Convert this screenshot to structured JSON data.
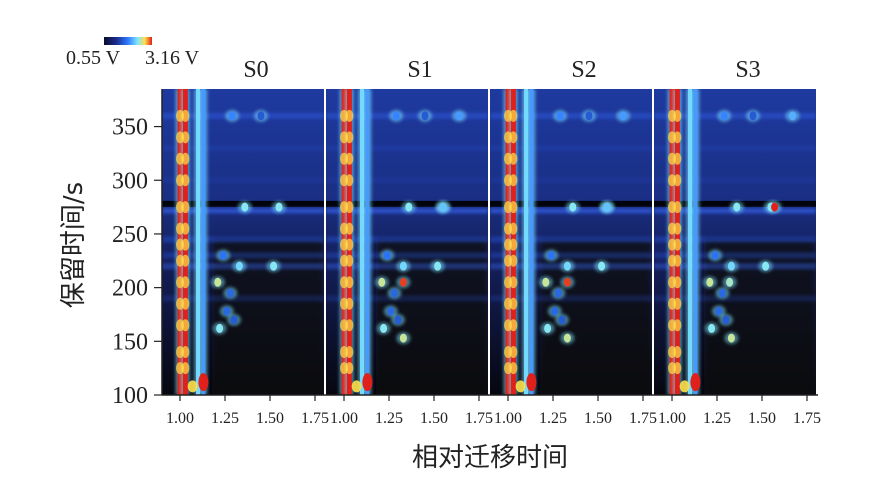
{
  "chart_data": {
    "type": "heatmap",
    "panels": [
      "S0",
      "S1",
      "S2",
      "S3"
    ],
    "xlabel": "相对迁移时间",
    "ylabel": "保留时间/s",
    "x_ticks": [
      "1.00",
      "1.25",
      "1.50",
      "1.75"
    ],
    "y_ticks": [
      100,
      150,
      200,
      250,
      300,
      350
    ],
    "xlim": [
      0.9,
      1.8
    ],
    "ylim": [
      100,
      385
    ],
    "colorbar": {
      "min_label": "0.55 V",
      "max_label": "3.16 V",
      "min": 0.55,
      "max": 3.16
    },
    "colors": {
      "background": "#0b0d2e",
      "low": "#1a2a8a",
      "mid": "#2f7bff",
      "high_cyan": "#7fe8ff",
      "yellow": "#ffe14a",
      "peak": "#e0201a"
    },
    "spots": [
      {
        "panels": [
          0,
          1,
          2,
          3
        ],
        "x": 1.36,
        "y": 275,
        "v": 2.4
      },
      {
        "panels": [
          0,
          1,
          2,
          3
        ],
        "x": 1.55,
        "y": 275,
        "v": 2.4
      },
      {
        "panels": [
          1,
          2
        ],
        "x": 1.55,
        "y": 275,
        "v": 2.2
      },
      {
        "panels": [
          3
        ],
        "x": 1.57,
        "y": 275,
        "v": 3.16
      },
      {
        "panels": [
          0,
          1,
          2,
          3
        ],
        "x": 1.33,
        "y": 220,
        "v": 2.3
      },
      {
        "panels": [
          0,
          1,
          2,
          3
        ],
        "x": 1.52,
        "y": 220,
        "v": 2.4
      },
      {
        "panels": [
          0,
          1,
          2,
          3
        ],
        "x": 1.21,
        "y": 205,
        "v": 2.6
      },
      {
        "panels": [
          1,
          2
        ],
        "x": 1.33,
        "y": 205,
        "v": 3.1
      },
      {
        "panels": [
          3
        ],
        "x": 1.32,
        "y": 205,
        "v": 2.5
      },
      {
        "panels": [
          0,
          1,
          2,
          3
        ],
        "x": 1.22,
        "y": 162,
        "v": 2.4
      },
      {
        "panels": [
          1,
          2,
          3
        ],
        "x": 1.33,
        "y": 153,
        "v": 2.6
      },
      {
        "panels": [
          0,
          1,
          2,
          3
        ],
        "x": 1.29,
        "y": 360,
        "v": 1.9
      },
      {
        "panels": [
          1,
          2
        ],
        "x": 1.64,
        "y": 360,
        "v": 2.0
      },
      {
        "panels": [
          3
        ],
        "x": 1.67,
        "y": 360,
        "v": 2.1
      },
      {
        "panels": [
          0,
          1,
          2,
          3
        ],
        "x": 1.45,
        "y": 360,
        "v": 1.6
      },
      {
        "panels": [
          0,
          1,
          2,
          3
        ],
        "x": 1.24,
        "y": 230,
        "v": 1.8
      },
      {
        "panels": [
          0,
          1,
          2,
          3
        ],
        "x": 1.28,
        "y": 195,
        "v": 1.7
      },
      {
        "panels": [
          0,
          1,
          2,
          3
        ],
        "x": 1.26,
        "y": 178,
        "v": 1.7
      },
      {
        "panels": [
          0,
          1,
          2,
          3
        ],
        "x": 1.3,
        "y": 170,
        "v": 1.6
      }
    ],
    "ridges": [
      {
        "x": 1.0,
        "v": 3.16
      },
      {
        "x": 1.03,
        "v": 3.16
      },
      {
        "x": 1.1,
        "v": 2.3
      },
      {
        "x": 1.13,
        "v": 2.0
      }
    ]
  }
}
